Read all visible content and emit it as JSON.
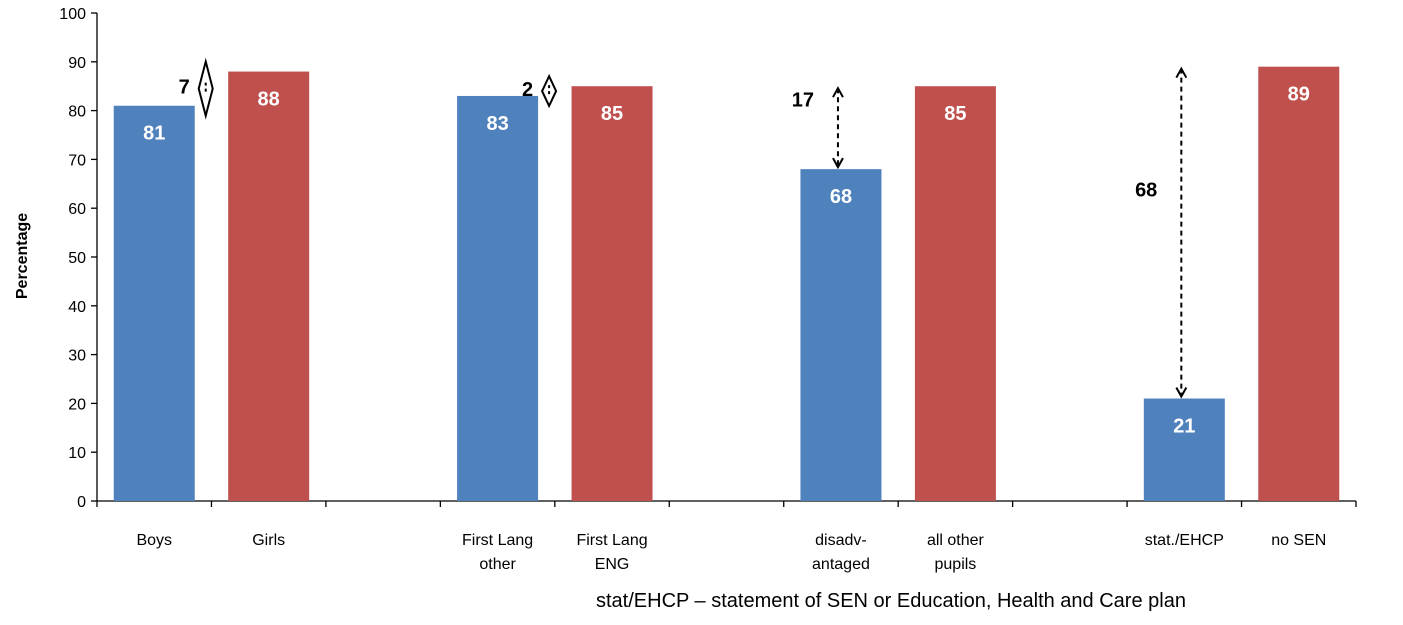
{
  "chart_data": {
    "type": "bar",
    "ylabel": "Percentage",
    "ylim": [
      0,
      100
    ],
    "ytick_step": 10,
    "grid": false,
    "colors": {
      "group_a": "#4F81BD",
      "group_b": "#C0504D",
      "arrow": "#000000"
    },
    "categories": [
      {
        "label": [
          "Boys"
        ],
        "value": 81,
        "color_key": "group_a"
      },
      {
        "label": [
          "Girls"
        ],
        "value": 88,
        "color_key": "group_b"
      },
      {
        "label": [],
        "value": null
      },
      {
        "label": [
          "First Lang",
          "other"
        ],
        "value": 83,
        "color_key": "group_a"
      },
      {
        "label": [
          "First Lang",
          "ENG"
        ],
        "value": 85,
        "color_key": "group_b"
      },
      {
        "label": [],
        "value": null
      },
      {
        "label": [
          "disadv-",
          "antaged"
        ],
        "value": 68,
        "color_key": "group_a"
      },
      {
        "label": [
          "all other",
          "pupils"
        ],
        "value": 85,
        "color_key": "group_b"
      },
      {
        "label": [],
        "value": null
      },
      {
        "label": [
          "stat./EHCP"
        ],
        "value": 21,
        "color_key": "group_a"
      },
      {
        "label": [
          "no SEN"
        ],
        "value": 89,
        "color_key": "group_b"
      }
    ],
    "gaps": [
      {
        "between": [
          0,
          1
        ],
        "label": "7",
        "from": 81,
        "to": 88
      },
      {
        "between": [
          3,
          4
        ],
        "label": "2",
        "from": 83,
        "to": 85
      },
      {
        "between": [
          6,
          7
        ],
        "label": "17",
        "from": 68,
        "to": 85
      },
      {
        "between": [
          9,
          10
        ],
        "label": "68",
        "from": 21,
        "to": 89
      }
    ]
  },
  "footnote": "stat/EHCP – statement of SEN or Education, Health and Care plan"
}
